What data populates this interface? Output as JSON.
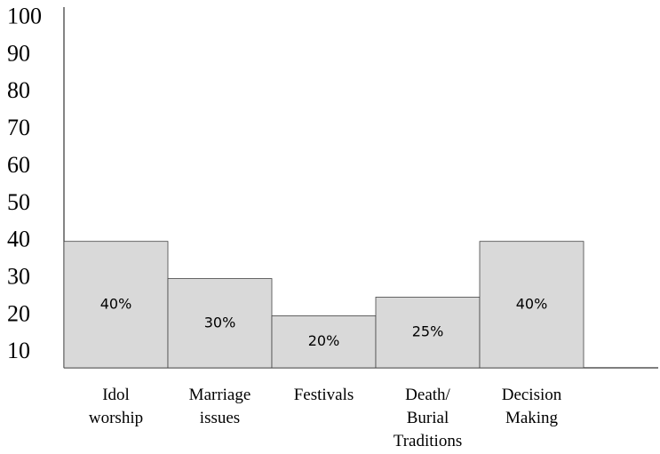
{
  "chart_data": {
    "type": "bar",
    "categories": [
      "Idol worship",
      "Marriage issues",
      "Festivals",
      "Death/ Burial Traditions",
      "Decision Making"
    ],
    "values": [
      40,
      30,
      20,
      25,
      40
    ],
    "value_labels": [
      "40%",
      "30%",
      "20%",
      "25%",
      "40%"
    ],
    "color": "#d9d9d9",
    "ylim": [
      6,
      103
    ],
    "yticks": [
      10,
      20,
      30,
      40,
      50,
      60,
      70,
      80,
      90,
      100
    ]
  }
}
